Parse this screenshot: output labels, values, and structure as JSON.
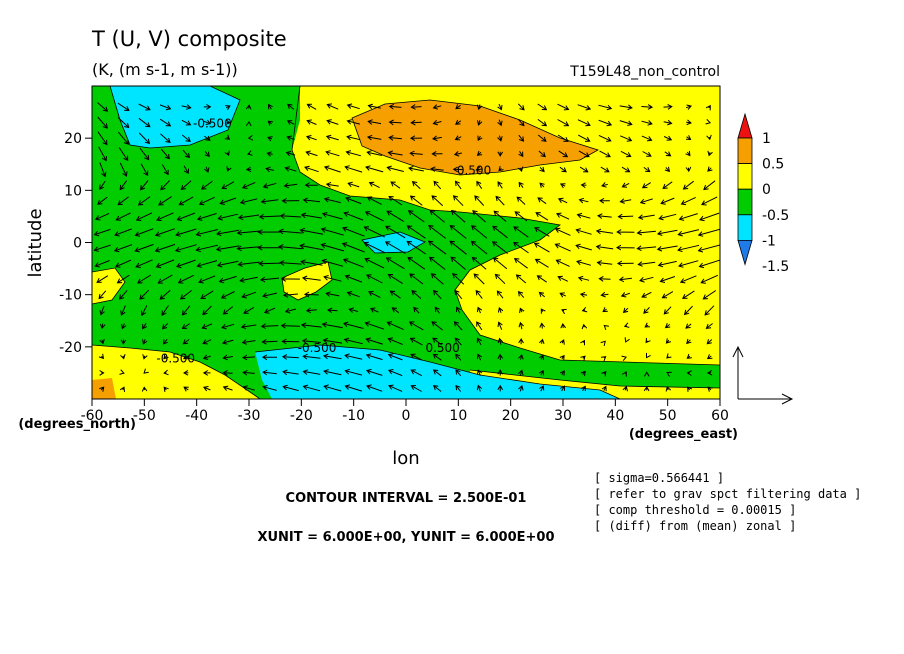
{
  "chart_data": {
    "type": "heatmap",
    "title": "T (U, V) composite",
    "subtitle": "(K, (m s-1, m s-1))",
    "run_label": "T159L48_non_control",
    "xlabel": "lon",
    "ylabel": "latitude",
    "x_unit_label": "(degrees_east)",
    "y_unit_label": "(degrees_north)",
    "xlim": [
      -60,
      60
    ],
    "ylim": [
      -30,
      30
    ],
    "x_ticks": [
      -60,
      -50,
      -40,
      -30,
      -20,
      -10,
      0,
      10,
      20,
      30,
      40,
      50,
      60
    ],
    "y_ticks": [
      -20,
      -10,
      0,
      10,
      20
    ],
    "colorbar": {
      "levels": [
        -1.5,
        -1,
        -0.5,
        0,
        0.5,
        1
      ],
      "tick_labels": [
        "1",
        "0.5",
        "0",
        "-0.5",
        "-1",
        "-1.5"
      ],
      "colors": [
        "#1e7be8",
        "#00e5ff",
        "#00cc00",
        "#ffff00",
        "#f5a000",
        "#ee1111"
      ]
    },
    "contour_labels": [
      {
        "text": "-0.500",
        "lon": -37,
        "lat": 22
      },
      {
        "text": "0.500",
        "lon": 13,
        "lat": 13
      },
      {
        "text": "-0.500",
        "lon": -17,
        "lat": -21
      },
      {
        "text": "0.500",
        "lon": 7,
        "lat": -21
      },
      {
        "text": "-0.500",
        "lon": -44,
        "lat": -23
      }
    ],
    "vector_reference": {
      "u": 6,
      "v": 6
    },
    "footer": {
      "contour_interval": "CONTOUR INTERVAL = 2.500E-01",
      "units": "XUNIT = 6.000E+00, YUNIT = 6.000E+00"
    },
    "notes": [
      "[ sigma=0.566441 ]",
      "[ refer to grav spct filtering data ]",
      "[ comp threshold = 0.00015 ]",
      "[ (diff) from (mean) zonal ]"
    ]
  }
}
